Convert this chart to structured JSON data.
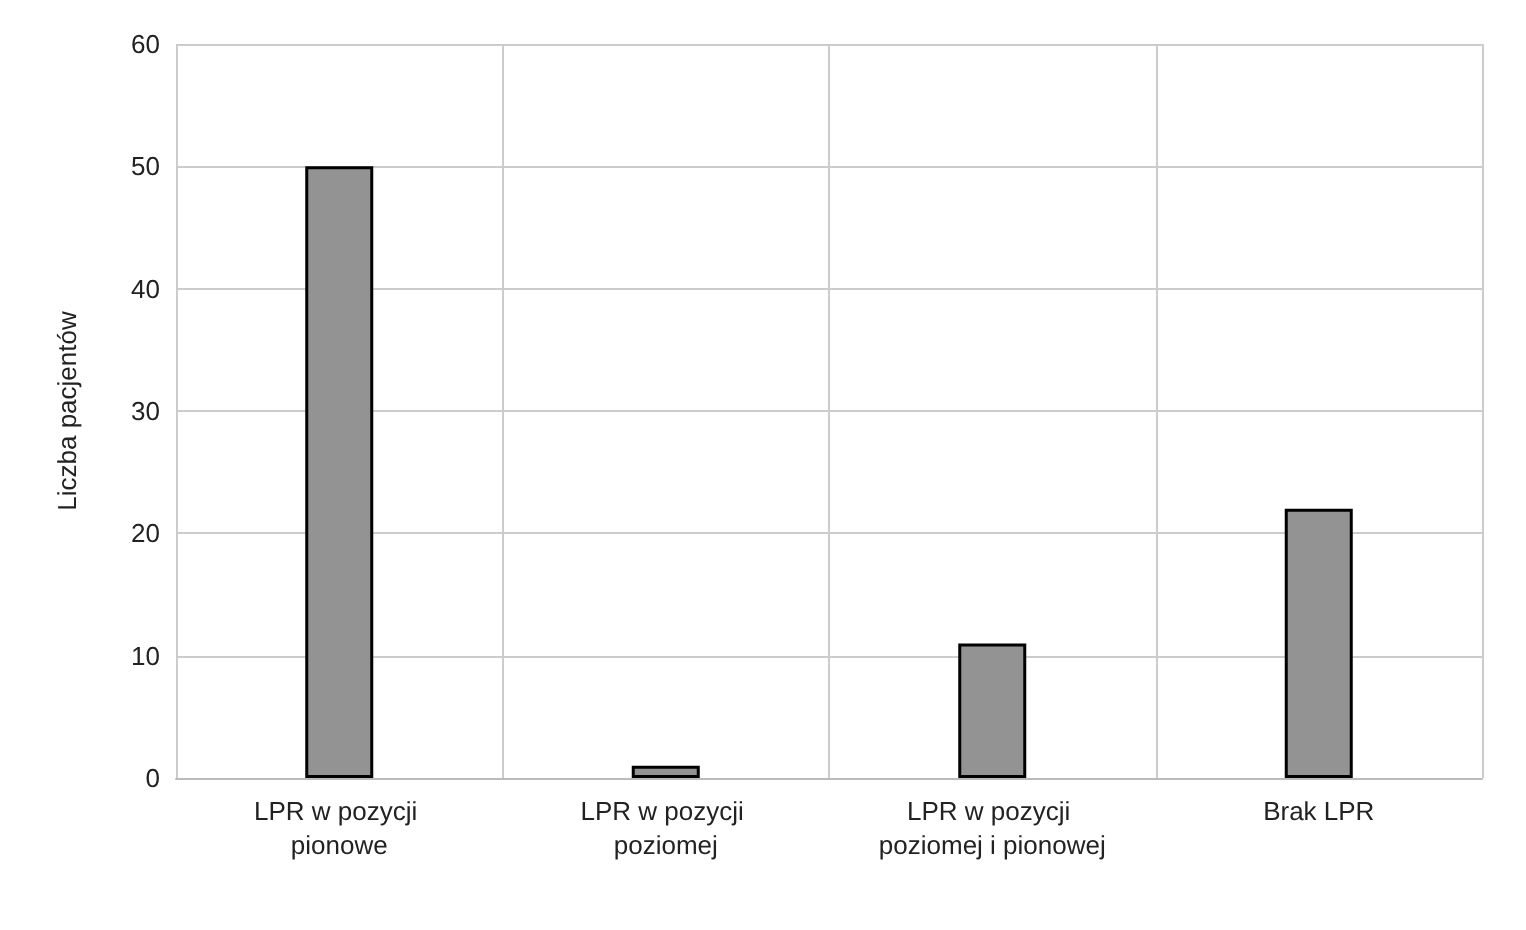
{
  "chart_data": {
    "type": "bar",
    "ylabel": "Liczba pacjentów",
    "categories": [
      "LPR w pozycji pionowe",
      "LPR w pozycji poziomej",
      "LPR w pozycji poziomej i pionowej",
      "Brak LPR"
    ],
    "values": [
      50,
      1,
      11,
      22
    ],
    "color": "#939393",
    "ylim": [
      0,
      60
    ],
    "yticks": [
      0,
      10,
      20,
      30,
      40,
      50,
      60
    ],
    "grid": true
  }
}
